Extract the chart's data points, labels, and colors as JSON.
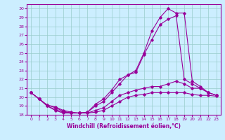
{
  "xlabel": "Windchill (Refroidissement éolien,°C)",
  "bg_color": "#cceeff",
  "line_color": "#990099",
  "grid_color": "#99cccc",
  "xlim": [
    -0.5,
    23.5
  ],
  "ylim": [
    18,
    30.5
  ],
  "yticks": [
    18,
    19,
    20,
    21,
    22,
    23,
    24,
    25,
    26,
    27,
    28,
    29,
    30
  ],
  "xticks": [
    0,
    1,
    2,
    3,
    4,
    5,
    6,
    7,
    8,
    9,
    10,
    11,
    12,
    13,
    14,
    15,
    16,
    17,
    18,
    19,
    20,
    21,
    22,
    23
  ],
  "series": [
    {
      "x": [
        0,
        1,
        2,
        3,
        4,
        5,
        6,
        7,
        8,
        9,
        10,
        11,
        12,
        13,
        14,
        15,
        16,
        17,
        18,
        19,
        20,
        21,
        22,
        23
      ],
      "y": [
        20.5,
        19.8,
        19.0,
        18.5,
        18.2,
        18.2,
        18.2,
        18.2,
        18.3,
        18.5,
        19.0,
        19.5,
        20.0,
        20.2,
        20.3,
        20.5,
        20.5,
        20.5,
        20.5,
        20.5,
        20.3,
        20.2,
        20.2,
        20.1
      ]
    },
    {
      "x": [
        0,
        1,
        2,
        3,
        4,
        5,
        6,
        7,
        8,
        9,
        10,
        11,
        12,
        13,
        14,
        15,
        16,
        17,
        18,
        19,
        20,
        21,
        22,
        23
      ],
      "y": [
        20.5,
        19.8,
        19.0,
        18.6,
        18.3,
        18.2,
        18.2,
        18.2,
        18.5,
        18.8,
        19.5,
        20.2,
        20.5,
        20.8,
        21.0,
        21.2,
        21.2,
        21.5,
        21.8,
        21.5,
        21.0,
        21.0,
        20.5,
        20.2
      ]
    },
    {
      "x": [
        0,
        1,
        2,
        3,
        4,
        5,
        6,
        7,
        8,
        9,
        10,
        11,
        12,
        13,
        14,
        15,
        16,
        17,
        18,
        19,
        20,
        21,
        22,
        23
      ],
      "y": [
        20.5,
        19.8,
        19.1,
        18.8,
        18.4,
        18.2,
        18.2,
        18.3,
        19.0,
        19.5,
        20.5,
        21.5,
        22.5,
        22.8,
        24.8,
        26.5,
        28.2,
        28.8,
        29.2,
        22.0,
        21.5,
        21.0,
        20.5,
        20.2
      ]
    },
    {
      "x": [
        0,
        1,
        2,
        3,
        4,
        5,
        6,
        7,
        8,
        9,
        10,
        11,
        12,
        13,
        14,
        15,
        16,
        17,
        18,
        19,
        20,
        21,
        22,
        23
      ],
      "y": [
        20.5,
        19.8,
        19.1,
        18.9,
        18.5,
        18.3,
        18.2,
        18.3,
        19.2,
        19.8,
        20.8,
        22.0,
        22.5,
        23.0,
        25.0,
        27.5,
        29.0,
        30.0,
        29.5,
        29.5,
        21.8,
        21.2,
        20.5,
        20.2
      ]
    }
  ]
}
